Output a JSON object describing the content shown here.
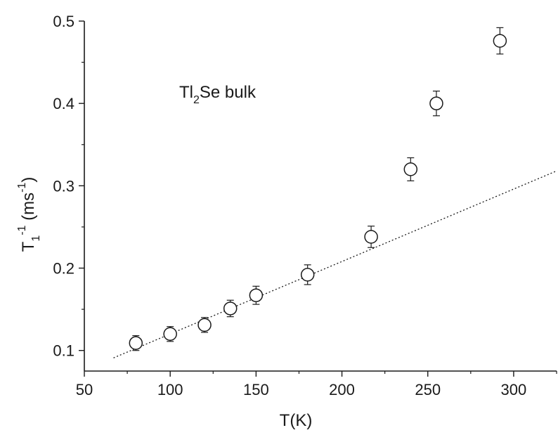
{
  "chart_data": {
    "type": "scatter",
    "title": "",
    "xlabel": "T(K)",
    "ylabel": {
      "base": "T",
      "sub": "1",
      "sup": "-1",
      "unit_open": " (ms",
      "unit_sup": "-1",
      "unit_close": ")"
    },
    "xlim": [
      50,
      325
    ],
    "ylim": [
      0.075,
      0.5
    ],
    "x_ticks": [
      50,
      100,
      150,
      200,
      250,
      300
    ],
    "y_ticks": [
      0.1,
      0.2,
      0.3,
      0.4,
      0.5
    ],
    "annotation": {
      "base": "Tl",
      "sub": "2",
      "rest": "Se bulk"
    },
    "series": [
      {
        "marker": "open-circle",
        "points": [
          {
            "x": 80,
            "y": 0.109,
            "err": 0.009
          },
          {
            "x": 100,
            "y": 0.12,
            "err": 0.009
          },
          {
            "x": 120,
            "y": 0.131,
            "err": 0.009
          },
          {
            "x": 135,
            "y": 0.151,
            "err": 0.01
          },
          {
            "x": 150,
            "y": 0.167,
            "err": 0.011
          },
          {
            "x": 180,
            "y": 0.192,
            "err": 0.012
          },
          {
            "x": 217,
            "y": 0.238,
            "err": 0.013
          },
          {
            "x": 240,
            "y": 0.32,
            "err": 0.014
          },
          {
            "x": 255,
            "y": 0.4,
            "err": 0.015
          },
          {
            "x": 292,
            "y": 0.476,
            "err": 0.016
          }
        ]
      }
    ],
    "fit_line": {
      "style": "dotted",
      "x": [
        67,
        325
      ],
      "y": [
        0.091,
        0.318
      ]
    },
    "colors": {
      "axis": "#1a1a1a",
      "marker": "#1a1a1a"
    }
  }
}
